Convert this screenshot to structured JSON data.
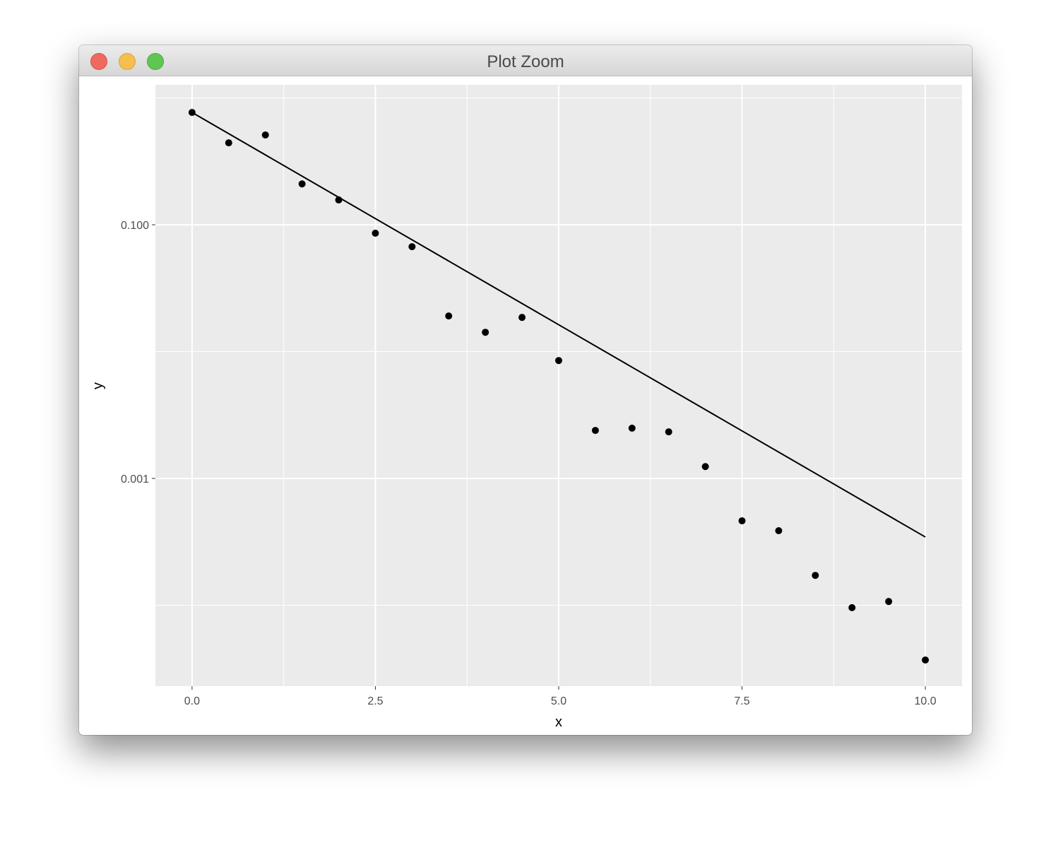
{
  "window": {
    "title": "Plot Zoom",
    "buttons": [
      {
        "name": "close",
        "color": "#ee6a5f"
      },
      {
        "name": "minimize",
        "color": "#f5bf4f"
      },
      {
        "name": "maximize",
        "color": "#61c554"
      }
    ]
  },
  "chart_data": {
    "type": "scatter",
    "title": "",
    "xlabel": "x",
    "ylabel": "y",
    "xlim": [
      -0.5,
      10.5
    ],
    "ylim": [
      2.3e-05,
      1.27
    ],
    "y_scale": "log10",
    "grid": true,
    "panel_background": "#ebebeb",
    "x_ticks": [
      0,
      2.5,
      5,
      7.5,
      10
    ],
    "x_tick_labels": [
      "0.0",
      "2.5",
      "5.0",
      "7.5",
      "10.0"
    ],
    "y_ticks": [
      0.1,
      0.001
    ],
    "y_tick_labels": [
      "0.100",
      "0.001"
    ],
    "y_minor_grid": [
      1,
      0.01,
      0.0001
    ],
    "points": {
      "x": [
        0,
        0.5,
        1,
        1.5,
        2,
        2.5,
        3,
        3.5,
        4,
        4.5,
        5,
        5.5,
        6,
        6.5,
        7,
        7.5,
        8,
        8.5,
        9,
        9.5,
        10
      ],
      "y": [
        0.769,
        0.443,
        0.511,
        0.21,
        0.157,
        0.0858,
        0.0672,
        0.0191,
        0.0142,
        0.0186,
        0.0085,
        0.00239,
        0.00249,
        0.00233,
        0.00124,
        0.000463,
        0.000387,
        0.000172,
        9.57e-05,
        0.000107,
        3.7e-05
      ]
    },
    "line": {
      "x": [
        0,
        10
      ],
      "y": [
        0.769,
        0.000345
      ]
    }
  }
}
